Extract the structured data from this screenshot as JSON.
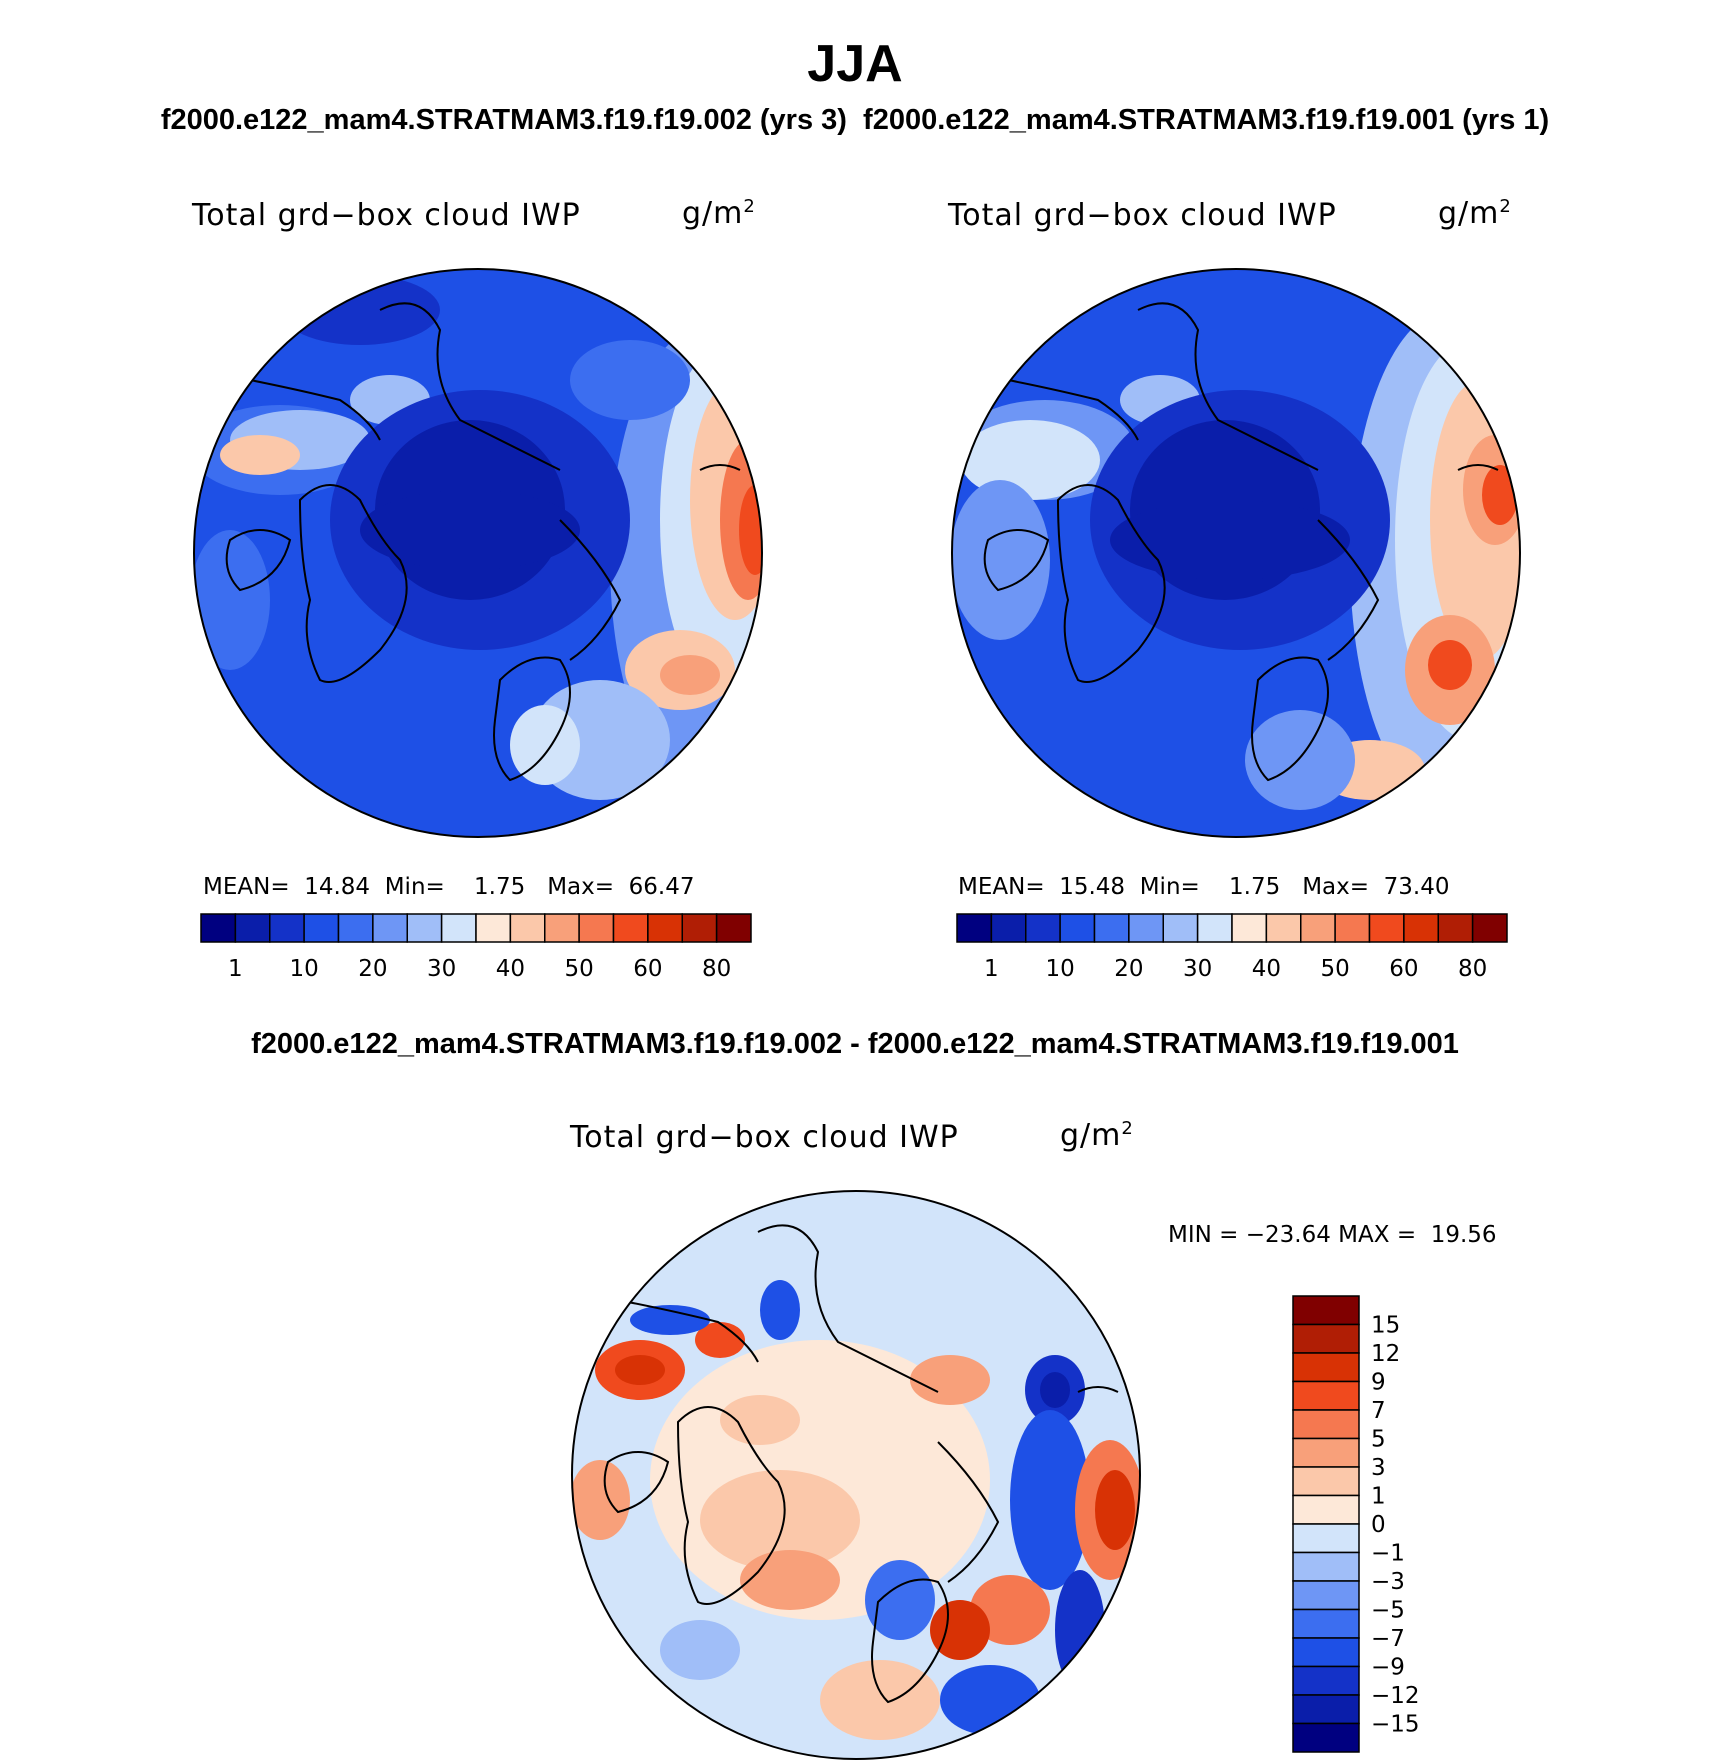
{
  "title": "JJA",
  "subtitle_top": "f2000.e122_mam4.STRATMAM3.f19.f19.002 (yrs 3)  f2000.e122_mam4.STRATMAM3.f19.f19.001 (yrs 1)",
  "subtitle_diff": "f2000.e122_mam4.STRATMAM3.f19.f19.002 - f2000.e122_mam4.STRATMAM3.f19.f19.001",
  "variable_label": "Total grd−box cloud IWP",
  "units": "g/m",
  "units_exp": "2",
  "panels": {
    "case1": {
      "mean_label": "MEAN=",
      "mean": "14.84",
      "min_label": "Min=",
      "min": "1.75",
      "max_label": "Max=",
      "max": "66.47"
    },
    "case2": {
      "mean_label": "MEAN=",
      "mean": "15.48",
      "min_label": "Min=",
      "min": "1.75",
      "max_label": "Max=",
      "max": "73.40"
    },
    "diff": {
      "min_label": "MIN =",
      "min": "−23.64",
      "max_label": "MAX =",
      "max": "19.56"
    }
  },
  "colorbar_abs": {
    "labels": [
      "1",
      "10",
      "20",
      "30",
      "40",
      "50",
      "60",
      "80"
    ],
    "colors": [
      "#000080",
      "#0a1eaa",
      "#1432c8",
      "#1e50e6",
      "#3c6ef0",
      "#6e96f5",
      "#a0bef8",
      "#d2e4fa",
      "#fde8d8",
      "#fbc8aa",
      "#f8a07a",
      "#f57850",
      "#f04a1e",
      "#d83205",
      "#b01e05",
      "#800000"
    ]
  },
  "colorbar_diff": {
    "labels": [
      "15",
      "12",
      "9",
      "7",
      "5",
      "3",
      "1",
      "0",
      "−1",
      "−3",
      "−5",
      "−7",
      "−9",
      "−12",
      "−15"
    ],
    "colors": [
      "#800000",
      "#b01e05",
      "#d83205",
      "#f04a1e",
      "#f57850",
      "#f8a07a",
      "#fbc8aa",
      "#fde8d8",
      "#d2e4fa",
      "#a0bef8",
      "#6e96f5",
      "#3c6ef0",
      "#1e50e6",
      "#1432c8",
      "#0a1eaa",
      "#000080"
    ]
  },
  "chart_data": {
    "type": "heatmap",
    "season": "JJA",
    "variable": "Total grd−box cloud IWP",
    "units": "g/m2",
    "projection": "North Polar Stereographic",
    "maps": [
      {
        "name": "f2000.e122_mam4.STRATMAM3.f19.f19.002 (yrs 3)",
        "mean": 14.84,
        "min": 1.75,
        "max": 66.47,
        "levels": [
          1,
          5,
          10,
          15,
          20,
          25,
          30,
          35,
          40,
          45,
          50,
          55,
          60,
          70,
          80
        ]
      },
      {
        "name": "f2000.e122_mam4.STRATMAM3.f19.f19.001 (yrs 1)",
        "mean": 15.48,
        "min": 1.75,
        "max": 73.4,
        "levels": [
          1,
          5,
          10,
          15,
          20,
          25,
          30,
          35,
          40,
          45,
          50,
          55,
          60,
          70,
          80
        ]
      },
      {
        "name": "difference 002 - 001",
        "min": -23.64,
        "max": 19.56,
        "levels": [
          -15,
          -12,
          -9,
          -7,
          -5,
          -3,
          -1,
          0,
          1,
          3,
          5,
          7,
          9,
          12,
          15
        ]
      }
    ]
  }
}
